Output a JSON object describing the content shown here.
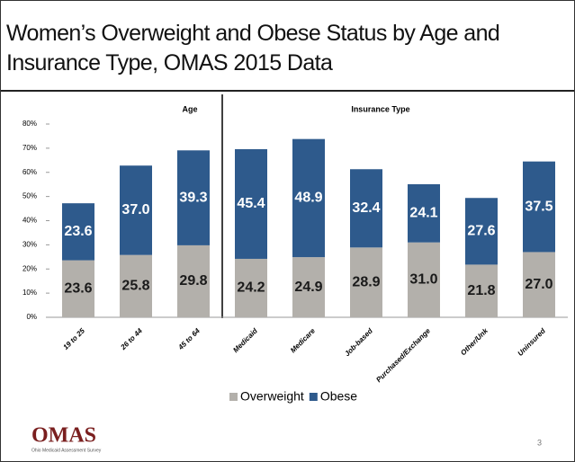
{
  "chart_data": {
    "type": "stacked_bar",
    "title": "Women’s Overweight and Obese Status by Age and Insurance Type, OMAS 2015 Data",
    "group_labels": [
      "Age",
      "Insurance Type"
    ],
    "categories": [
      "19 to 25",
      "26 to 44",
      "45 to 64",
      "Medicaid",
      "Medicare",
      "Job-based",
      "Purchased/Exchange",
      "Other/Unk",
      "Uninsured"
    ],
    "series": [
      {
        "name": "Overweight",
        "color": "#b3b0ab",
        "label_color": "#1a1a1a",
        "values": [
          23.6,
          25.8,
          29.8,
          24.2,
          24.9,
          28.9,
          31.0,
          21.8,
          27.0
        ],
        "value_labels": [
          "23.6",
          "25.8",
          "29.8",
          "24.2",
          "24.9",
          "28.9",
          "31.0",
          "21.8",
          "27.0"
        ]
      },
      {
        "name": "Obese",
        "color": "#2e5a8c",
        "label_color": "#ffffff",
        "values": [
          23.6,
          37.0,
          39.3,
          45.4,
          48.9,
          32.4,
          24.1,
          27.6,
          37.5
        ],
        "value_labels": [
          "23.6",
          "37.0",
          "39.3",
          "45.4",
          "48.9",
          "32.4",
          "24.1",
          "27.6",
          "37.5"
        ]
      }
    ],
    "ylim": [
      0,
      80
    ],
    "yticks": [
      {
        "value": 0,
        "label": "0%"
      },
      {
        "value": 10,
        "label": "10%"
      },
      {
        "value": 20,
        "label": "20%"
      },
      {
        "value": 30,
        "label": "30%"
      },
      {
        "value": 40,
        "label": "40%"
      },
      {
        "value": 50,
        "label": "50%"
      },
      {
        "value": 60,
        "label": "60%"
      },
      {
        "value": 70,
        "label": "70%"
      },
      {
        "value": 80,
        "label": "80%"
      }
    ],
    "legend": "bottom"
  },
  "footer": {
    "logo": "OMAS",
    "logo_subtitle": "Ohio Medicaid Assessment Survey",
    "page_number": "3"
  }
}
